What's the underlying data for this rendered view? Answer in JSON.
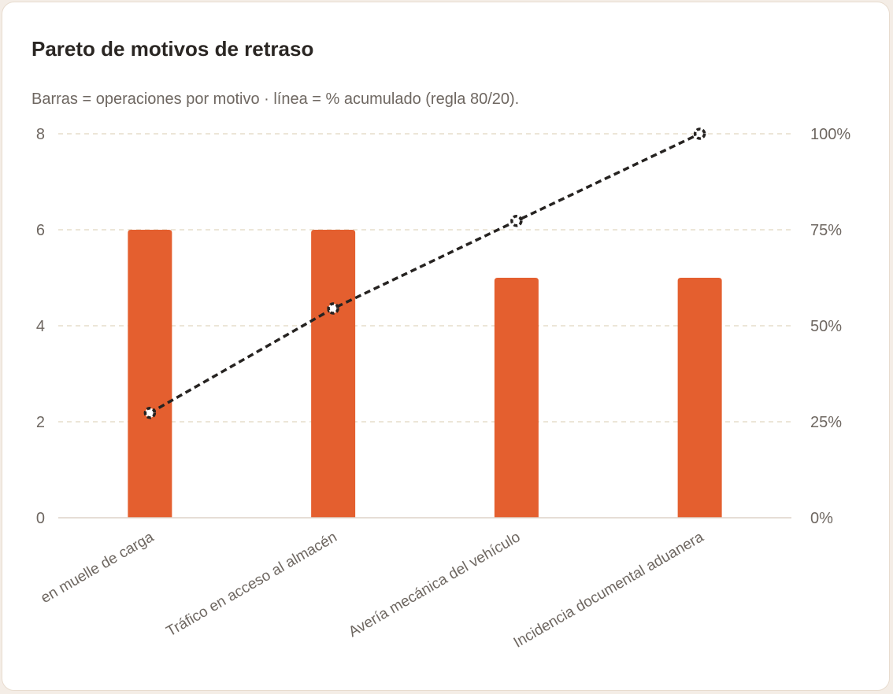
{
  "card": {
    "title": "Pareto de motivos de retraso",
    "subtitle": "Barras = operaciones por motivo · línea = % acumulado (regla 80/20)."
  },
  "colors": {
    "bar": "#e45f2f",
    "line": "#262321",
    "grid": "#e6ddcc",
    "axis": "#ddd3c8"
  },
  "chart_data": {
    "type": "bar",
    "categories": [
      "en muelle de carga",
      "Tráfico en acceso al almacén",
      "Avería mecánica del vehículo",
      "Incidencia documental aduanera"
    ],
    "series": [
      {
        "values": [
          6,
          6,
          5,
          5
        ],
        "axis": "left",
        "type": "bar"
      },
      {
        "values": [
          27.3,
          54.5,
          77.3,
          100
        ],
        "axis": "right",
        "type": "line",
        "style": "dashed"
      }
    ],
    "y_left": {
      "ylim": [
        0,
        8
      ],
      "ticks": [
        "0",
        "2",
        "4",
        "6",
        "8"
      ]
    },
    "y_right": {
      "ylim": [
        0,
        100
      ],
      "ticks": [
        "0%",
        "25%",
        "50%",
        "75%",
        "100%"
      ]
    },
    "grid": true,
    "legend": "none"
  }
}
